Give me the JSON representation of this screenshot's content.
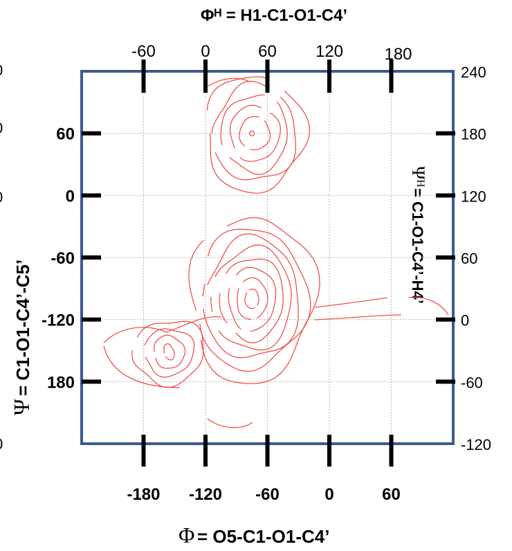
{
  "chart_data": {
    "type": "contour",
    "top_title": "Φᴴ = H1-C1-O1-C4’",
    "bottom_title_symbol": "Φ",
    "bottom_title_text": " = O5-C1-O1-C4’",
    "left_title_symbol": "Ψ",
    "left_title_text": " = C1-O1-C4’-C5’",
    "right_title_symbol": "Ψᴴ",
    "right_title_text": " = C1-O1-C4’-H4’",
    "x_bottom": {
      "ticks": [
        -180,
        -120,
        -60,
        0,
        60
      ],
      "range": [
        -240,
        120
      ]
    },
    "x_top": {
      "ticks": [
        -60,
        0,
        60,
        120,
        180
      ],
      "range": [
        -120,
        240
      ]
    },
    "y_left": {
      "ticks": [
        60,
        0,
        -60,
        -120,
        180
      ],
      "clipped_labels": [
        "0",
        "0",
        "0",
        "0"
      ]
    },
    "y_right": {
      "ticks": [
        240,
        180,
        120,
        60,
        0,
        -60,
        -120
      ],
      "range": [
        -120,
        240
      ]
    },
    "grid": true,
    "contour_color": "#f0504a",
    "frame_color": "#3b5b8a",
    "minima": [
      {
        "name": "main",
        "x": -75,
        "y_right": 20,
        "levels": 7
      },
      {
        "name": "upper",
        "x": -75,
        "y_right": 180,
        "levels": 5
      },
      {
        "name": "left",
        "x": -150,
        "y_right": -30,
        "levels": 4
      }
    ]
  }
}
